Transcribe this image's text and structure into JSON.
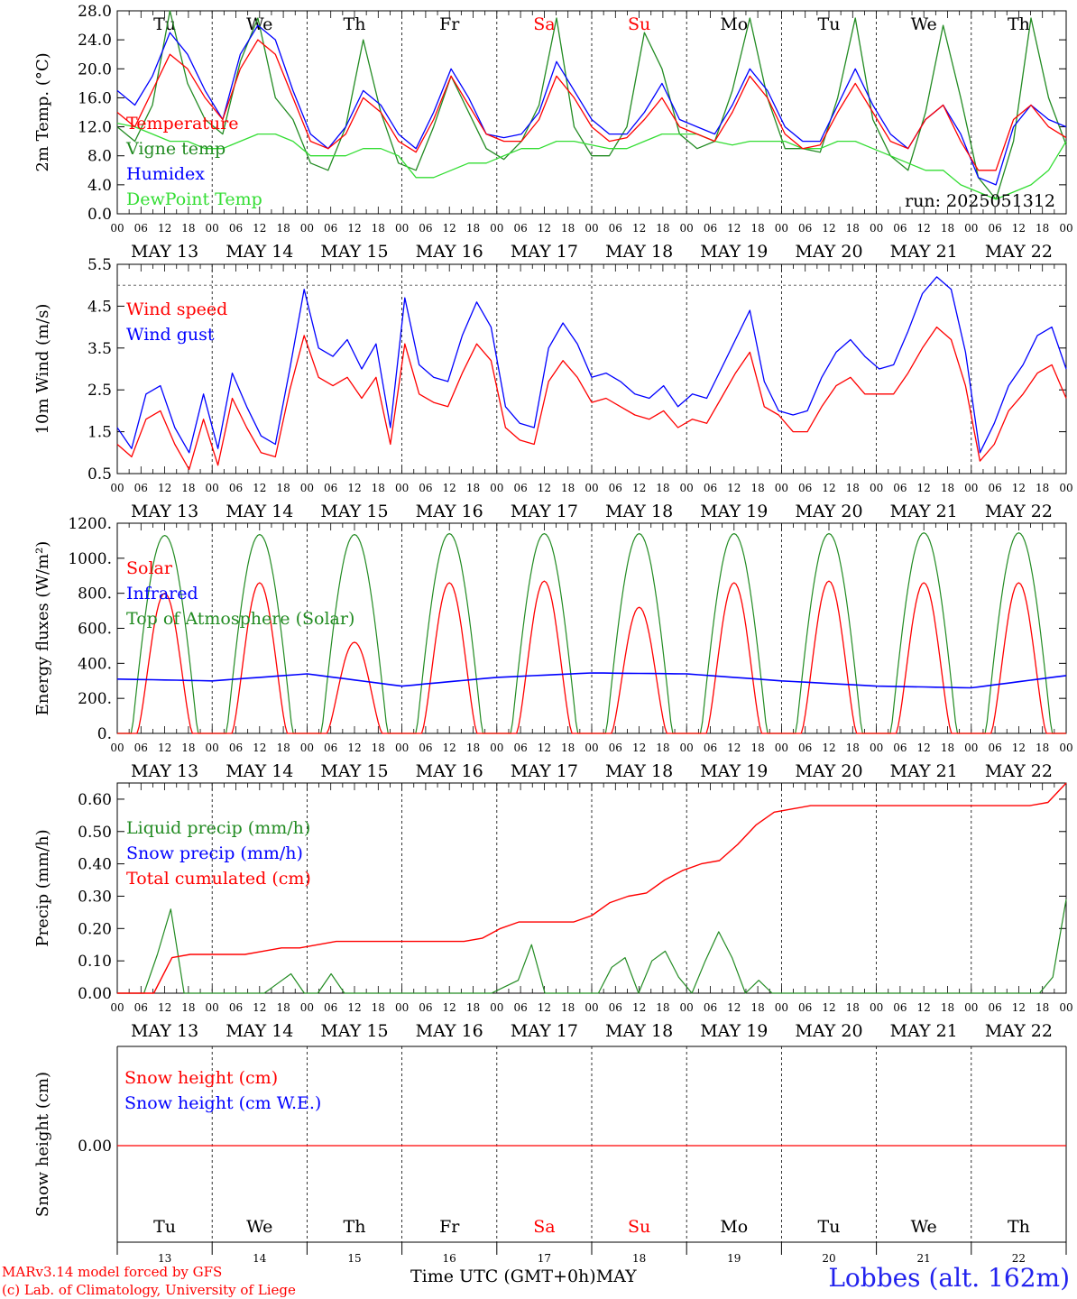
{
  "meta": {
    "run_label": "run: 2025051312",
    "model_credit": "MARv3.14 model forced by GFS",
    "lab_credit": "(c) Lab. of Climatology, University of Liege",
    "xlabel": "Time UTC (GMT+0h)",
    "month": "MAY",
    "station": "Lobbes (alt. 162m)"
  },
  "days": {
    "weekday": [
      "Tu",
      "We",
      "Th",
      "Fr",
      "Sa",
      "Su",
      "Mo",
      "Tu",
      "We",
      "Th"
    ],
    "weekend_index": [
      4,
      5
    ],
    "dates": [
      "MAY 13",
      "MAY 14",
      "MAY 15",
      "MAY 16",
      "MAY 17",
      "MAY 18",
      "MAY 19",
      "MAY 20",
      "MAY 21",
      "MAY 22"
    ],
    "daynum": [
      "13",
      "14",
      "15",
      "16",
      "17",
      "18",
      "19",
      "20",
      "21",
      "22"
    ],
    "hour_ticks": [
      "00",
      "06",
      "12",
      "18"
    ],
    "final_tick": "00"
  },
  "colors": {
    "red": "#ff0000",
    "green": "#228b22",
    "blue": "#0000ff",
    "lightgreen": "#33dd33",
    "weekend": "#ff0000"
  },
  "chart_data": [
    {
      "type": "line",
      "ylabel": "2m Temp. (°C)",
      "ylim": [
        0,
        28
      ],
      "yticks": [
        "0.0",
        "4.0",
        "8.0",
        "12.0",
        "16.0",
        "20.0",
        "24.0",
        "28.0"
      ],
      "x_hours_step": 12,
      "series": [
        {
          "name": "Temperature",
          "color": "red",
          "values": [
            14,
            12,
            17,
            22,
            20,
            16,
            13,
            20,
            24,
            22,
            16,
            10,
            9,
            11,
            16,
            14,
            10,
            8.5,
            13,
            19,
            15,
            11,
            10,
            10,
            13,
            19,
            16,
            12,
            10,
            10.5,
            13,
            16,
            12,
            11,
            10,
            14,
            19,
            16,
            11,
            9,
            9.5,
            14,
            18,
            14,
            10,
            9,
            13,
            15,
            10,
            6,
            6,
            13,
            15,
            12,
            10.5
          ]
        },
        {
          "name": "Vigne temp",
          "color": "green",
          "values": [
            12,
            10,
            15,
            28,
            18,
            13,
            11,
            21,
            27,
            16,
            13,
            7,
            6,
            12,
            24,
            14,
            7,
            6,
            12,
            19,
            14,
            9,
            7.5,
            10,
            15,
            27,
            12,
            8,
            8,
            12,
            25,
            20,
            11,
            9,
            10,
            17,
            27,
            16,
            9,
            9,
            8.5,
            16,
            27,
            13,
            8,
            6,
            14,
            26,
            16,
            5,
            2,
            10,
            27,
            16,
            9.5
          ]
        },
        {
          "name": "Humidex",
          "color": "blue",
          "values": [
            17,
            15,
            19,
            25,
            22,
            17,
            13,
            22,
            26,
            24,
            17,
            11,
            9,
            12,
            17,
            15,
            11,
            9,
            14,
            20,
            16,
            11,
            10.5,
            11,
            14,
            21,
            17,
            13,
            11,
            11,
            14,
            18,
            13,
            12,
            11,
            15,
            20,
            17,
            12,
            10,
            10,
            15,
            20,
            15,
            11,
            9,
            13,
            15,
            11,
            5,
            4,
            12,
            15,
            13,
            12
          ]
        },
        {
          "name": "DewPoint Temp",
          "color": "lightgreen",
          "values": [
            12.5,
            12,
            11,
            10,
            10,
            9,
            9,
            10,
            11,
            11,
            10,
            8,
            8,
            8,
            9,
            9,
            8,
            5,
            5,
            6,
            7,
            7,
            8,
            9,
            9,
            10,
            10,
            9.5,
            9,
            9,
            10,
            11,
            11,
            11,
            10,
            9.5,
            10,
            10,
            10,
            9,
            9,
            10,
            10,
            9,
            8,
            7,
            6,
            6,
            4,
            3,
            2,
            3,
            4,
            6,
            10
          ]
        }
      ],
      "annotations": []
    },
    {
      "type": "line",
      "ylabel": "10m Wind (m/s)",
      "ylim": [
        0.5,
        5.5
      ],
      "yticks": [
        "0.5",
        "1.5",
        "2.5",
        "3.5",
        "4.5",
        "5.5"
      ],
      "reference_line": 5.0,
      "x_hours_step": 6,
      "series": [
        {
          "name": "Wind speed",
          "color": "red",
          "values": [
            1.2,
            0.9,
            1.8,
            2.0,
            1.2,
            0.6,
            1.8,
            0.7,
            2.3,
            1.6,
            1.0,
            0.9,
            2.5,
            3.8,
            2.8,
            2.6,
            2.8,
            2.3,
            2.8,
            1.2,
            3.6,
            2.4,
            2.2,
            2.1,
            2.9,
            3.6,
            3.2,
            1.6,
            1.3,
            1.2,
            2.7,
            3.2,
            2.8,
            2.2,
            2.3,
            2.1,
            1.9,
            1.8,
            2.0,
            1.6,
            1.8,
            1.7,
            2.3,
            2.9,
            3.4,
            2.1,
            1.9,
            1.5,
            1.5,
            2.1,
            2.6,
            2.8,
            2.4,
            2.4,
            2.4,
            2.9,
            3.5,
            4.0,
            3.7,
            2.6,
            0.8,
            1.2,
            2.0,
            2.4,
            2.9,
            3.1,
            2.3
          ]
        },
        {
          "name": "Wind gust",
          "color": "blue",
          "values": [
            1.6,
            1.1,
            2.4,
            2.6,
            1.6,
            1.0,
            2.4,
            1.1,
            2.9,
            2.1,
            1.4,
            1.2,
            3.0,
            4.9,
            3.5,
            3.3,
            3.7,
            3.0,
            3.6,
            1.6,
            4.7,
            3.1,
            2.8,
            2.7,
            3.8,
            4.6,
            4.0,
            2.1,
            1.7,
            1.6,
            3.5,
            4.1,
            3.6,
            2.8,
            2.9,
            2.7,
            2.4,
            2.3,
            2.6,
            2.1,
            2.4,
            2.3,
            3.0,
            3.7,
            4.4,
            2.7,
            2.0,
            1.9,
            2.0,
            2.8,
            3.4,
            3.7,
            3.3,
            3.0,
            3.1,
            3.9,
            4.8,
            5.2,
            4.9,
            3.4,
            1.0,
            1.7,
            2.6,
            3.1,
            3.8,
            4.0,
            3.0
          ]
        }
      ],
      "annotations": []
    },
    {
      "type": "line",
      "ylabel": "Energy fluxes (W/m²)",
      "ylim": [
        0,
        1200
      ],
      "yticks": [
        "0.",
        "200.",
        "400.",
        "600.",
        "800.",
        "1000.",
        "1200."
      ],
      "series": [
        {
          "name": "Solar",
          "color": "red",
          "peaks": [
            800,
            860,
            520,
            860,
            870,
            720,
            860,
            870,
            860,
            860
          ]
        },
        {
          "name": "Infrared",
          "color": "blue",
          "daily": [
            310,
            300,
            340,
            270,
            320,
            345,
            340,
            300,
            270,
            260,
            330
          ]
        },
        {
          "name": "Top of Atmosphere (Solar)",
          "color": "green",
          "peaks": [
            1130,
            1135,
            1135,
            1140,
            1140,
            1140,
            1140,
            1140,
            1145,
            1145
          ]
        }
      ],
      "annotations": []
    },
    {
      "type": "line",
      "ylabel": "Precip (mm/h)",
      "ylim": [
        0,
        0.65
      ],
      "yticks": [
        "0.00",
        "0.10",
        "0.20",
        "0.30",
        "0.40",
        "0.50",
        "0.60"
      ],
      "x_hours_step": 6,
      "series": [
        {
          "name": "Liquid precip (mm/h)",
          "color": "green",
          "values": [
            0,
            0,
            0,
            0.12,
            0.26,
            0,
            0,
            0,
            0,
            0,
            0,
            0,
            0.03,
            0.06,
            0,
            0,
            0.06,
            0,
            0,
            0,
            0,
            0,
            0,
            0,
            0,
            0,
            0,
            0,
            0,
            0.02,
            0.04,
            0.15,
            0,
            0,
            0,
            0,
            0,
            0.08,
            0.11,
            0,
            0.1,
            0.13,
            0.05,
            0,
            0.1,
            0.19,
            0.11,
            0,
            0.04,
            0,
            0,
            0,
            0,
            0,
            0,
            0,
            0,
            0,
            0,
            0,
            0,
            0,
            0,
            0,
            0,
            0,
            0,
            0,
            0,
            0,
            0.05,
            0.29
          ]
        },
        {
          "name": "Snow precip (mm/h)",
          "color": "blue",
          "values": []
        },
        {
          "name": "Total cumulated (cm)",
          "color": "red",
          "values": [
            0,
            0,
            0,
            0.11,
            0.12,
            0.12,
            0.12,
            0.12,
            0.13,
            0.14,
            0.14,
            0.15,
            0.16,
            0.16,
            0.16,
            0.16,
            0.16,
            0.16,
            0.16,
            0.16,
            0.17,
            0.2,
            0.22,
            0.22,
            0.22,
            0.22,
            0.24,
            0.28,
            0.3,
            0.31,
            0.35,
            0.38,
            0.4,
            0.41,
            0.46,
            0.52,
            0.56,
            0.57,
            0.58,
            0.58,
            0.58,
            0.58,
            0.58,
            0.58,
            0.58,
            0.58,
            0.58,
            0.58,
            0.58,
            0.58,
            0.58,
            0.59,
            0.65
          ]
        }
      ],
      "annotations": []
    },
    {
      "type": "line",
      "ylabel": "Snow height (cm)",
      "yticks": [
        "0.00"
      ],
      "series": [
        {
          "name": "Snow height (cm)",
          "color": "red",
          "values": [
            0,
            0
          ]
        },
        {
          "name": "Snow height (cm W.E.)",
          "color": "blue",
          "values": []
        }
      ]
    }
  ]
}
